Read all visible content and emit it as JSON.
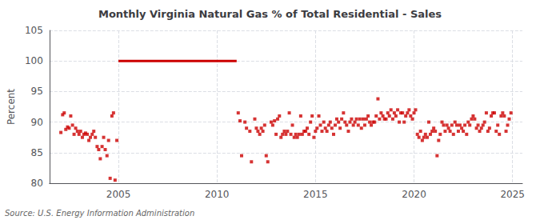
{
  "chart_data": {
    "type": "scatter",
    "title": "Monthly Virginia Natural Gas % of Total Residential - Sales",
    "ylabel": "Percent",
    "source": "Source: U.S. Energy Information Administration",
    "xlim": [
      2001.5,
      2025.5
    ],
    "xticks": [
      2005,
      2010,
      2015,
      2020,
      2025
    ],
    "ylim": [
      80,
      105
    ],
    "yticks": [
      80,
      85,
      90,
      95,
      100,
      105
    ],
    "grid": true,
    "series": [
      {
        "type": "scatter",
        "color": "#cc0000",
        "marker": "square",
        "x": [
          2002.08,
          2002.17,
          2002.25,
          2002.33,
          2002.42,
          2002.5,
          2002.58,
          2002.67,
          2002.75,
          2002.83,
          2002.92,
          2003.0,
          2003.08,
          2003.17,
          2003.25,
          2003.33,
          2003.42,
          2003.5,
          2003.58,
          2003.67,
          2003.75,
          2003.83,
          2003.92,
          2004.0,
          2004.08,
          2004.17,
          2004.25,
          2004.33,
          2004.42,
          2004.5,
          2004.58,
          2004.67,
          2004.75,
          2004.83,
          2004.92,
          2011.08,
          2011.17,
          2011.25,
          2011.42,
          2011.5,
          2011.67,
          2011.75,
          2011.92,
          2012.0,
          2012.08,
          2012.17,
          2012.25,
          2012.33,
          2012.42,
          2012.5,
          2012.58,
          2012.75,
          2012.83,
          2012.92,
          2013.0,
          2013.08,
          2013.17,
          2013.25,
          2013.33,
          2013.42,
          2013.5,
          2013.58,
          2013.67,
          2013.75,
          2013.83,
          2013.92,
          2014.0,
          2014.08,
          2014.17,
          2014.25,
          2014.33,
          2014.42,
          2014.5,
          2014.58,
          2014.67,
          2014.75,
          2014.83,
          2014.92,
          2015.0,
          2015.08,
          2015.17,
          2015.25,
          2015.33,
          2015.42,
          2015.5,
          2015.58,
          2015.67,
          2015.75,
          2015.83,
          2015.92,
          2016.0,
          2016.08,
          2016.17,
          2016.25,
          2016.33,
          2016.42,
          2016.5,
          2016.58,
          2016.67,
          2016.75,
          2016.83,
          2016.92,
          2017.0,
          2017.08,
          2017.17,
          2017.25,
          2017.33,
          2017.42,
          2017.5,
          2017.58,
          2017.67,
          2017.75,
          2017.83,
          2017.92,
          2018.0,
          2018.08,
          2018.17,
          2018.25,
          2018.33,
          2018.42,
          2018.5,
          2018.58,
          2018.67,
          2018.75,
          2018.83,
          2018.92,
          2019.0,
          2019.08,
          2019.17,
          2019.25,
          2019.33,
          2019.42,
          2019.5,
          2019.58,
          2019.67,
          2019.75,
          2019.83,
          2019.92,
          2020.0,
          2020.08,
          2020.17,
          2020.25,
          2020.33,
          2020.42,
          2020.5,
          2020.58,
          2020.67,
          2020.75,
          2020.83,
          2020.92,
          2021.0,
          2021.08,
          2021.17,
          2021.25,
          2021.33,
          2021.42,
          2021.5,
          2021.58,
          2021.67,
          2021.75,
          2021.83,
          2021.92,
          2022.0,
          2022.08,
          2022.17,
          2022.25,
          2022.33,
          2022.42,
          2022.5,
          2022.58,
          2022.67,
          2022.75,
          2022.83,
          2022.92,
          2023.0,
          2023.08,
          2023.17,
          2023.25,
          2023.33,
          2023.42,
          2023.5,
          2023.58,
          2023.67,
          2023.75,
          2023.83,
          2023.92,
          2024.0,
          2024.08,
          2024.17,
          2024.25,
          2024.33,
          2024.42,
          2024.5,
          2024.58,
          2024.67,
          2024.75,
          2024.83,
          2024.92
        ],
        "values": [
          88.3,
          91.2,
          91.5,
          88.8,
          89.2,
          89.0,
          91.0,
          89.5,
          88.0,
          89.0,
          88.5,
          88.0,
          88.5,
          87.5,
          88.0,
          88.2,
          88.0,
          87.0,
          87.5,
          88.0,
          88.5,
          87.5,
          86.0,
          85.5,
          84.0,
          86.0,
          87.5,
          85.5,
          84.5,
          87.0,
          80.8,
          91.0,
          91.5,
          80.5,
          87.0,
          91.5,
          90.2,
          84.5,
          90.0,
          89.0,
          88.5,
          83.5,
          90.5,
          89.0,
          88.5,
          88.0,
          89.0,
          88.5,
          89.5,
          84.5,
          83.5,
          90.0,
          89.5,
          90.2,
          88.0,
          90.5,
          91.0,
          87.5,
          88.0,
          88.5,
          88.0,
          88.5,
          91.5,
          88.0,
          89.5,
          87.5,
          88.0,
          87.5,
          88.0,
          91.0,
          88.0,
          88.5,
          88.5,
          89.0,
          88.0,
          90.0,
          91.0,
          87.5,
          88.5,
          89.0,
          91.0,
          89.5,
          88.5,
          90.0,
          89.0,
          88.5,
          89.5,
          90.0,
          89.0,
          88.0,
          89.5,
          90.5,
          90.0,
          89.0,
          90.5,
          91.5,
          90.0,
          89.5,
          88.5,
          90.0,
          90.5,
          89.5,
          90.0,
          90.5,
          89.5,
          90.5,
          89.0,
          90.5,
          89.5,
          90.5,
          91.0,
          90.0,
          89.5,
          90.0,
          90.0,
          91.0,
          93.8,
          90.5,
          91.5,
          91.0,
          90.5,
          90.5,
          91.5,
          91.0,
          92.0,
          90.5,
          91.5,
          91.0,
          92.0,
          90.0,
          91.5,
          91.5,
          90.0,
          91.0,
          91.5,
          92.0,
          91.0,
          90.5,
          91.5,
          92.0,
          88.0,
          87.5,
          88.5,
          87.0,
          87.5,
          88.0,
          87.5,
          90.0,
          88.0,
          88.5,
          89.0,
          88.5,
          84.5,
          87.0,
          88.0,
          90.0,
          89.5,
          88.5,
          89.5,
          89.0,
          88.5,
          89.5,
          88.0,
          90.0,
          89.5,
          88.5,
          89.5,
          89.0,
          88.5,
          89.5,
          88.0,
          90.0,
          89.5,
          90.5,
          91.0,
          90.5,
          89.0,
          89.5,
          88.5,
          89.0,
          89.5,
          90.0,
          91.5,
          88.5,
          89.0,
          91.0,
          91.5,
          91.5,
          88.5,
          89.5,
          88.0,
          91.0,
          91.5,
          91.0,
          88.5,
          89.5,
          90.5,
          91.5
        ]
      },
      {
        "type": "line",
        "color": "#cc0000",
        "line_style": "solid",
        "x": [
          2005.0,
          2011.0
        ],
        "values": [
          100.0,
          100.0
        ]
      }
    ]
  }
}
